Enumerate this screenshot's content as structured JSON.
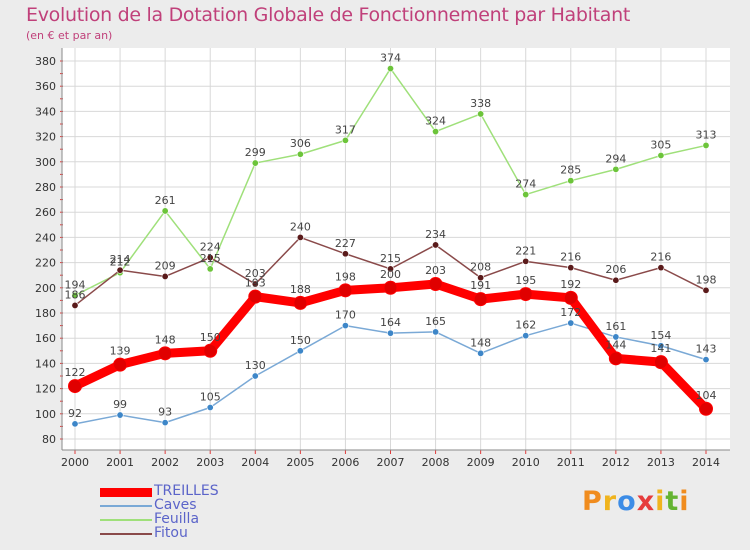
{
  "header": {
    "title": "Evolution de la Dotation Globale de Fonctionnement par Habitant",
    "subtitle": "(en € et par an)"
  },
  "logo": {
    "letters": [
      "P",
      "r",
      "o",
      "x",
      "i",
      "t",
      "i"
    ],
    "colors": [
      "#f08c1e",
      "#f0b41e",
      "#3c8ce6",
      "#e63c3c",
      "#f0b41e",
      "#64b432",
      "#f08c1e"
    ]
  },
  "colors": {
    "background": "#ececec",
    "plot_background": "#ffffff",
    "grid": "#d8d8d8",
    "axis": "#8a8a8a",
    "tick_mark": "#e03c3c",
    "title": "#c0407a",
    "legend_text": "#5b64c9"
  },
  "chart_data": {
    "type": "line",
    "x": [
      2000,
      2001,
      2002,
      2003,
      2004,
      2005,
      2006,
      2007,
      2008,
      2009,
      2010,
      2011,
      2012,
      2013,
      2014
    ],
    "ylim": [
      80,
      380
    ],
    "yticks": [
      80,
      100,
      120,
      140,
      160,
      180,
      200,
      220,
      240,
      260,
      280,
      300,
      320,
      340,
      360,
      380
    ],
    "grid": true,
    "legend_position": "bottom-left",
    "series": [
      {
        "name": "TREILLES",
        "values": [
          122,
          139,
          148,
          150,
          193,
          188,
          198,
          200,
          203,
          191,
          195,
          192,
          144,
          141,
          104
        ],
        "color": "#ff0000",
        "marker_color": "#e00000",
        "width": 9,
        "marker_r": 6.5
      },
      {
        "name": "Caves",
        "values": [
          92,
          99,
          93,
          105,
          130,
          150,
          170,
          164,
          165,
          148,
          162,
          172,
          161,
          154,
          143
        ],
        "color": "#7aa9d6",
        "marker_color": "#3d86c8",
        "width": 1.5,
        "marker_r": 3.2
      },
      {
        "name": "Feuilla",
        "values": [
          194,
          212,
          261,
          215,
          299,
          306,
          317,
          374,
          324,
          338,
          274,
          285,
          294,
          305,
          313
        ],
        "color": "#9fe07a",
        "marker_color": "#6cc43a",
        "width": 1.5,
        "marker_r": 3.2
      },
      {
        "name": "Fitou",
        "values": [
          186,
          214,
          209,
          224,
          203,
          240,
          227,
          215,
          234,
          208,
          221,
          216,
          206,
          216,
          198
        ],
        "color": "#8a4a4a",
        "marker_color": "#5a1a1a",
        "width": 1.5,
        "marker_r": 3.2
      }
    ]
  }
}
